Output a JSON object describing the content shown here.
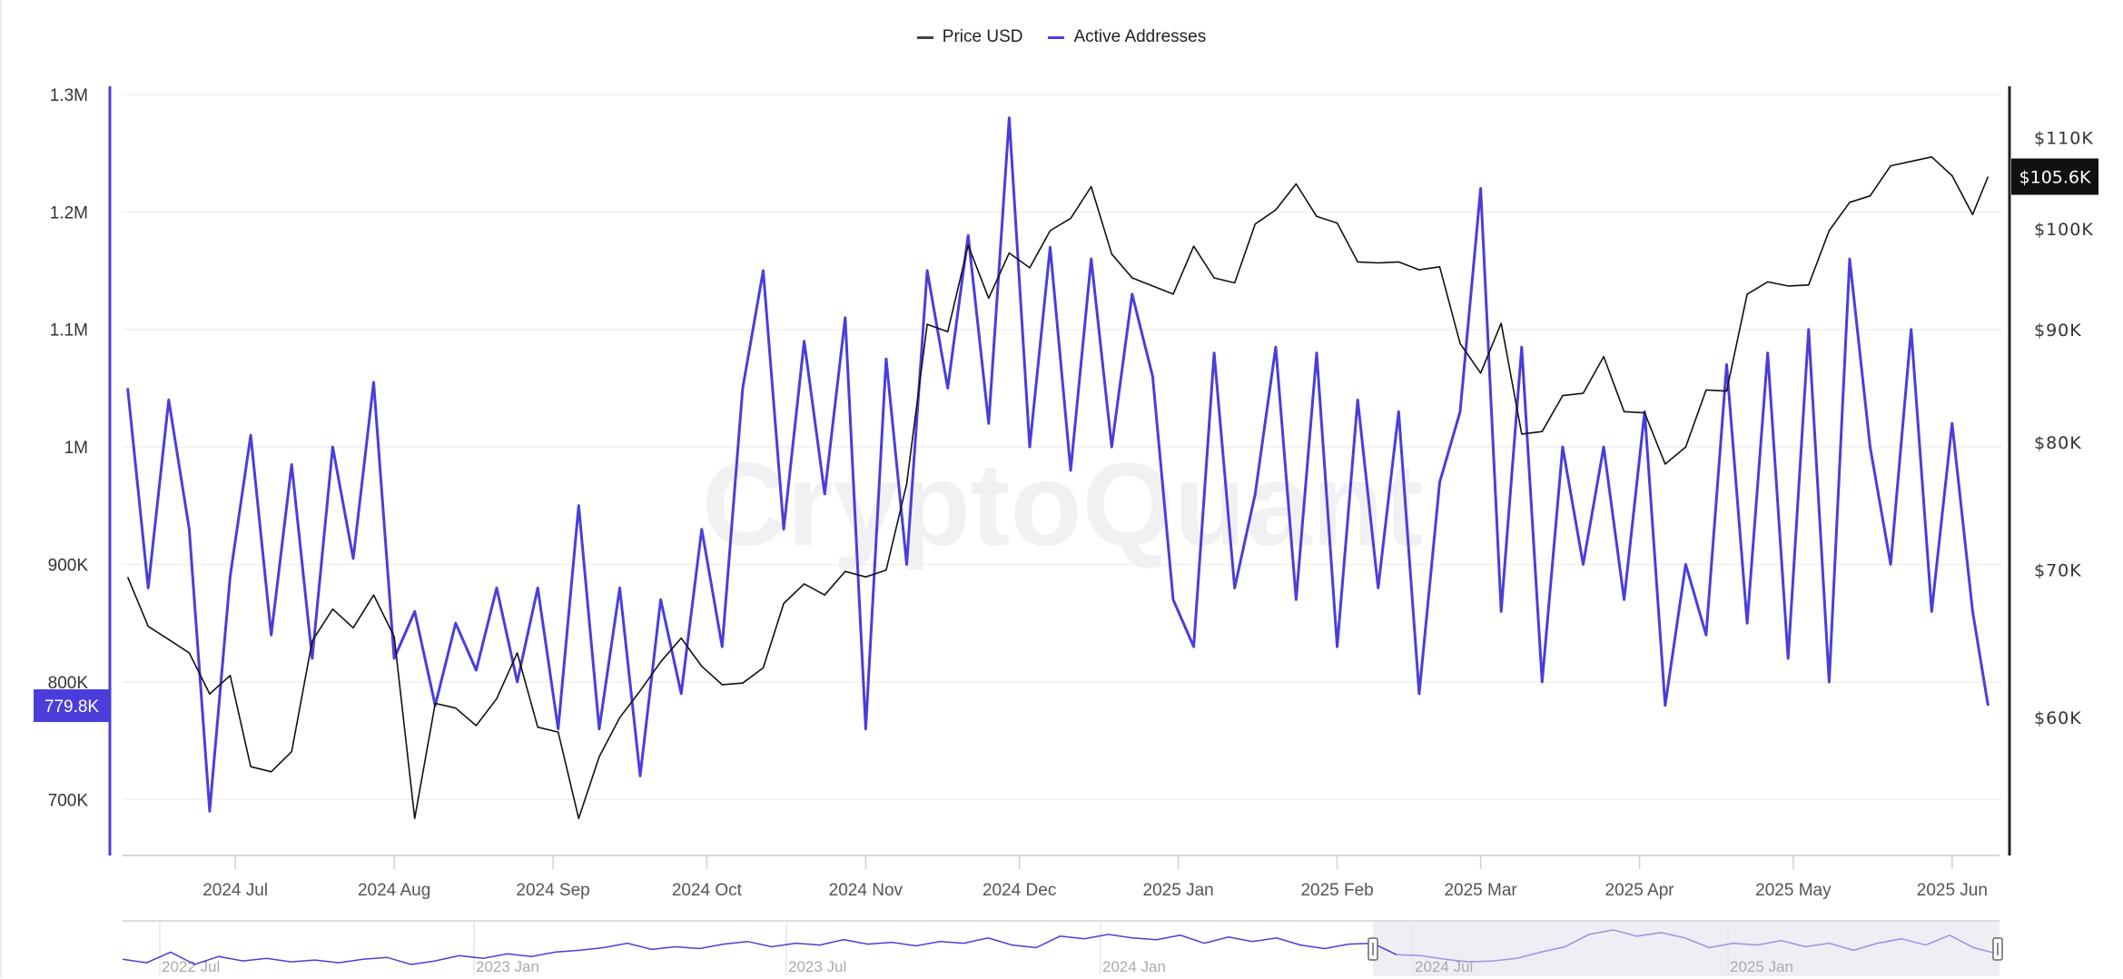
{
  "legend": {
    "price_label": "Price USD",
    "addresses_label": "Active Addresses"
  },
  "watermark": "CryptoQuant",
  "colors": {
    "active_addresses": "#4b3ddb",
    "price": "#111111",
    "navigator_selected": "#9b90e8",
    "navigator_shade": "#efeef4"
  },
  "chart_data": {
    "type": "line",
    "grid": true,
    "legend_position": "top-center",
    "xlim": [
      "2024-06-09",
      "2025-06-09"
    ],
    "x_ticks": [
      {
        "date": "2024-07-01",
        "label": "2024 Jul"
      },
      {
        "date": "2024-08-01",
        "label": "2024 Aug"
      },
      {
        "date": "2024-09-01",
        "label": "2024 Sep"
      },
      {
        "date": "2024-10-01",
        "label": "2024 Oct"
      },
      {
        "date": "2024-11-01",
        "label": "2024 Nov"
      },
      {
        "date": "2024-12-01",
        "label": "2024 Dec"
      },
      {
        "date": "2025-01-01",
        "label": "2025 Jan"
      },
      {
        "date": "2025-02-01",
        "label": "2025 Feb"
      },
      {
        "date": "2025-03-01",
        "label": "2025 Mar"
      },
      {
        "date": "2025-04-01",
        "label": "2025 Apr"
      },
      {
        "date": "2025-05-01",
        "label": "2025 May"
      },
      {
        "date": "2025-06-01",
        "label": "2025 Jun"
      }
    ],
    "y_left": {
      "scale": "linear",
      "ylim": [
        650000,
        1310000
      ],
      "ticks": [
        {
          "value": 700000,
          "label": "700K"
        },
        {
          "value": 800000,
          "label": "800K"
        },
        {
          "value": 900000,
          "label": "900K"
        },
        {
          "value": 1000000,
          "label": "1M"
        },
        {
          "value": 1100000,
          "label": "1.1M"
        },
        {
          "value": 1200000,
          "label": "1.2M"
        },
        {
          "value": 1300000,
          "label": "1.3M"
        }
      ],
      "current_label": "779.8K",
      "current_value": 779800
    },
    "y_right": {
      "scale": "log",
      "ylim": [
        51800,
        116500
      ],
      "ticks": [
        {
          "value": 60000,
          "label": "$60K"
        },
        {
          "value": 70000,
          "label": "$70K"
        },
        {
          "value": 80000,
          "label": "$80K"
        },
        {
          "value": 90000,
          "label": "$90K"
        },
        {
          "value": 100000,
          "label": "$100K"
        },
        {
          "value": 110000,
          "label": "$110K"
        }
      ],
      "current_label": "$105.6K",
      "current_value": 105600
    },
    "dates": [
      "2024-06-10",
      "2024-06-14",
      "2024-06-18",
      "2024-06-22",
      "2024-06-26",
      "2024-06-30",
      "2024-07-04",
      "2024-07-08",
      "2024-07-12",
      "2024-07-16",
      "2024-07-20",
      "2024-07-24",
      "2024-07-28",
      "2024-08-01",
      "2024-08-05",
      "2024-08-09",
      "2024-08-13",
      "2024-08-17",
      "2024-08-21",
      "2024-08-25",
      "2024-08-29",
      "2024-09-02",
      "2024-09-06",
      "2024-09-10",
      "2024-09-14",
      "2024-09-18",
      "2024-09-22",
      "2024-09-26",
      "2024-09-30",
      "2024-10-04",
      "2024-10-08",
      "2024-10-12",
      "2024-10-16",
      "2024-10-20",
      "2024-10-24",
      "2024-10-28",
      "2024-11-01",
      "2024-11-05",
      "2024-11-09",
      "2024-11-13",
      "2024-11-17",
      "2024-11-21",
      "2024-11-25",
      "2024-11-29",
      "2024-12-03",
      "2024-12-07",
      "2024-12-11",
      "2024-12-15",
      "2024-12-19",
      "2024-12-23",
      "2024-12-27",
      "2024-12-31",
      "2025-01-04",
      "2025-01-08",
      "2025-01-12",
      "2025-01-16",
      "2025-01-20",
      "2025-01-24",
      "2025-01-28",
      "2025-02-01",
      "2025-02-05",
      "2025-02-09",
      "2025-02-13",
      "2025-02-17",
      "2025-02-21",
      "2025-02-25",
      "2025-03-01",
      "2025-03-05",
      "2025-03-09",
      "2025-03-13",
      "2025-03-17",
      "2025-03-21",
      "2025-03-25",
      "2025-03-29",
      "2025-04-02",
      "2025-04-06",
      "2025-04-10",
      "2025-04-14",
      "2025-04-18",
      "2025-04-22",
      "2025-04-26",
      "2025-04-30",
      "2025-05-04",
      "2025-05-08",
      "2025-05-12",
      "2025-05-16",
      "2025-05-20",
      "2025-05-24",
      "2025-05-28",
      "2025-06-01",
      "2025-06-05",
      "2025-06-08"
    ],
    "series": [
      {
        "name": "Active Addresses",
        "axis": "left",
        "values": [
          1050000,
          880000,
          1040000,
          930000,
          690000,
          890000,
          1010000,
          840000,
          985000,
          820000,
          1000000,
          905000,
          1055000,
          820000,
          860000,
          780000,
          850000,
          810000,
          880000,
          800000,
          880000,
          760000,
          950000,
          760000,
          880000,
          720000,
          870000,
          790000,
          930000,
          830000,
          1050000,
          1150000,
          930000,
          1090000,
          960000,
          1110000,
          760000,
          1075000,
          900000,
          1150000,
          1050000,
          1180000,
          1020000,
          1280000,
          1000000,
          1170000,
          980000,
          1160000,
          1000000,
          1130000,
          1060000,
          870000,
          830000,
          1080000,
          880000,
          960000,
          1085000,
          870000,
          1080000,
          830000,
          1040000,
          880000,
          1030000,
          790000,
          970000,
          1030000,
          1220000,
          860000,
          1085000,
          800000,
          1000000,
          900000,
          1000000,
          870000,
          1030000,
          780000,
          900000,
          840000,
          1070000,
          850000,
          1080000,
          820000,
          1100000,
          800000,
          1160000,
          1000000,
          900000,
          1100000,
          860000,
          1020000,
          860000,
          779800
        ]
      },
      {
        "name": "Price USD",
        "axis": "right",
        "values": [
          69500,
          66000,
          65100,
          64200,
          61500,
          62700,
          57000,
          56700,
          57900,
          65000,
          67200,
          65900,
          68200,
          65300,
          54000,
          60900,
          60600,
          59500,
          61200,
          64200,
          59400,
          59100,
          54000,
          57600,
          60000,
          61700,
          63600,
          65200,
          63300,
          62100,
          62200,
          63200,
          67600,
          69000,
          68200,
          69900,
          69500,
          70000,
          76600,
          90500,
          89800,
          98300,
          93000,
          97500,
          96000,
          99800,
          101100,
          104500,
          97400,
          95000,
          94200,
          93400,
          98200,
          95000,
          94500,
          100500,
          102000,
          104800,
          101300,
          100600,
          96600,
          96500,
          96600,
          95800,
          96100,
          88700,
          86000,
          90600,
          80700,
          80900,
          84000,
          84200,
          87500,
          82600,
          82500,
          78200,
          79600,
          84500,
          84400,
          93400,
          94600,
          94200,
          94300,
          99800,
          102800,
          103500,
          106800,
          107300,
          107800,
          105700,
          101500,
          105600
        ]
      }
    ],
    "navigator": {
      "labels": [
        "2022 Jul",
        "2023 Jan",
        "2023 Jul",
        "2024 Jan",
        "2024 Jul",
        "2025 Jan"
      ],
      "values": [
        820000,
        780000,
        900000,
        760000,
        850000,
        800000,
        830000,
        790000,
        810000,
        780000,
        820000,
        840000,
        760000,
        800000,
        860000,
        830000,
        880000,
        850000,
        900000,
        920000,
        950000,
        1000000,
        930000,
        960000,
        940000,
        990000,
        1020000,
        960000,
        1000000,
        980000,
        1040000,
        990000,
        1010000,
        970000,
        1020000,
        1000000,
        1060000,
        980000,
        950000,
        1080000,
        1050000,
        1100000,
        1060000,
        1040000,
        1090000,
        1000000,
        1070000,
        1020000,
        1060000,
        980000,
        940000,
        990000,
        1000000,
        870000,
        860000,
        820000,
        790000,
        800000,
        830000,
        900000,
        960000,
        1100000,
        1150000,
        1080000,
        1120000,
        1060000,
        950000,
        1000000,
        980000,
        1030000,
        960000,
        1000000,
        920000,
        1000000,
        1050000,
        980000,
        1090000,
        950000,
        880000
      ]
    }
  }
}
